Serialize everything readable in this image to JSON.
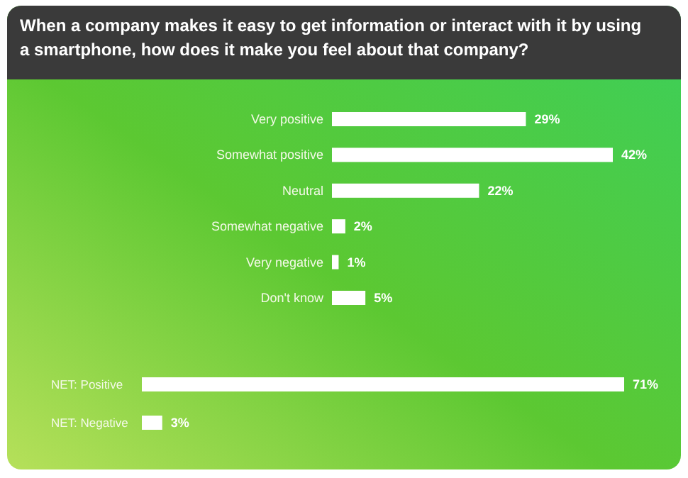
{
  "chart_data": [
    {
      "type": "bar",
      "orientation": "horizontal",
      "title": "When a company makes it easy to get information or interact with it by using a smartphone, how does it make you feel about that company?",
      "categories": [
        "Very positive",
        "Somewhat positive",
        "Neutral",
        "Somewhat negative",
        "Very negative",
        "Don't know"
      ],
      "values": [
        29,
        42,
        22,
        2,
        1,
        5
      ],
      "value_labels": [
        "29%",
        "42%",
        "22%",
        "2%",
        "1%",
        "5%"
      ],
      "color": "#ffffff"
    },
    {
      "type": "bar",
      "orientation": "horizontal",
      "categories": [
        "NET: Positive",
        "NET: Negative"
      ],
      "values": [
        71,
        3
      ],
      "value_labels": [
        "71%",
        "3%"
      ],
      "color": "#ffffff"
    }
  ]
}
